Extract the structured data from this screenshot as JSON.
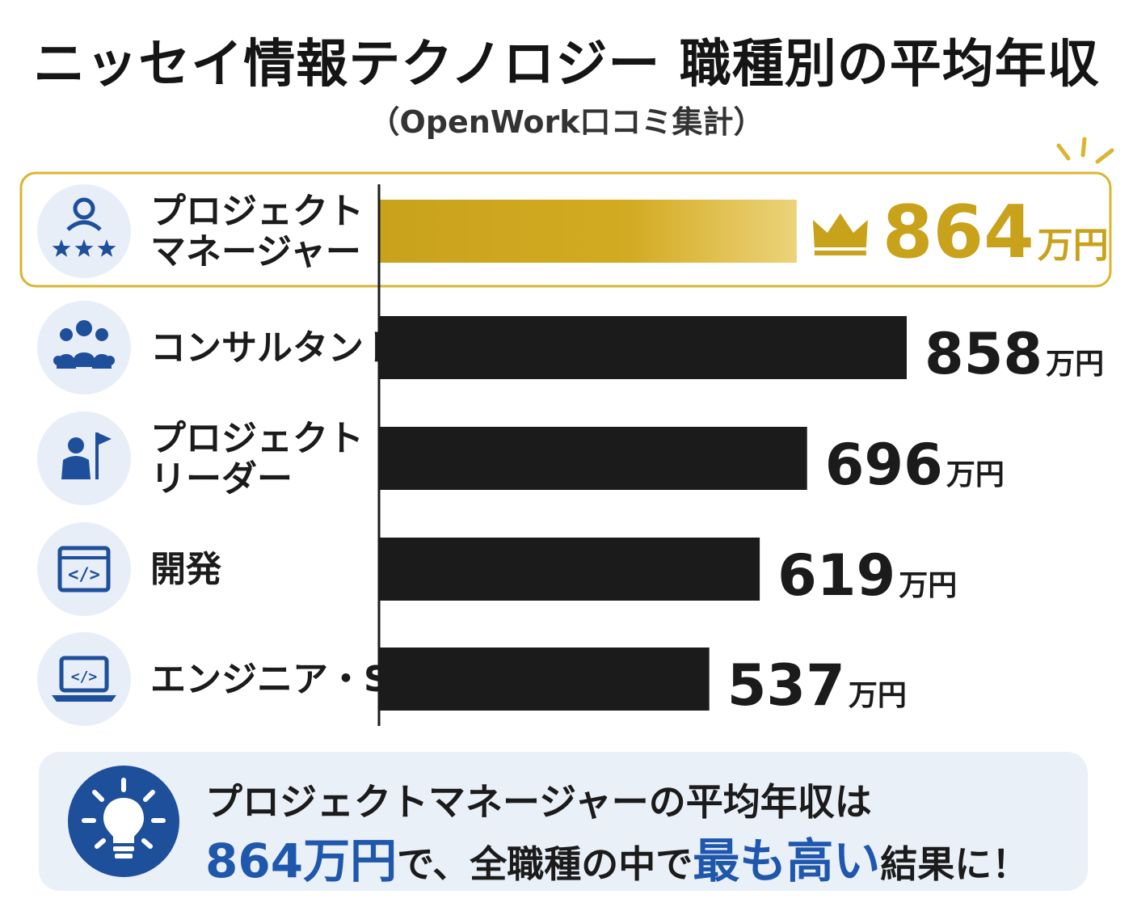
{
  "header": {
    "title": "ニッセイ情報テクノロジー 職種別の平均年収",
    "subtitle": "（OpenWork口コミ集計）"
  },
  "chart_data": {
    "type": "bar",
    "orientation": "horizontal",
    "unit": "万円",
    "categories": [
      [
        "プロジェクト",
        "マネージャー"
      ],
      [
        "コンサルタント"
      ],
      [
        "プロジェクト",
        "リーダー"
      ],
      [
        "開発"
      ],
      [
        "エンジニア・SE"
      ]
    ],
    "values": [
      864,
      858,
      696,
      619,
      537
    ],
    "value_labels": [
      "864",
      "858",
      "696",
      "619",
      "537"
    ],
    "icons": [
      "manager-stars-icon",
      "team-group-icon",
      "leader-flag-icon",
      "code-window-icon",
      "laptop-code-icon"
    ],
    "highlight_index": 0,
    "highlight_icon": "crown-icon",
    "colors": {
      "bar": "#1b1b1b",
      "highlight_bar": "#c9a21c",
      "highlight_value": "#c9a21c",
      "highlight_border": "#d9b531",
      "icon": "#1e4f9b",
      "icon_bg": "#e8eef7"
    }
  },
  "callout": {
    "icon": "lightbulb-icon",
    "line1": "プロジェクトマネージャーの平均年収は",
    "value": "864万円",
    "part2": "で、全職種の中で",
    "emphasis": "最も高い",
    "part3": "結果に！"
  }
}
